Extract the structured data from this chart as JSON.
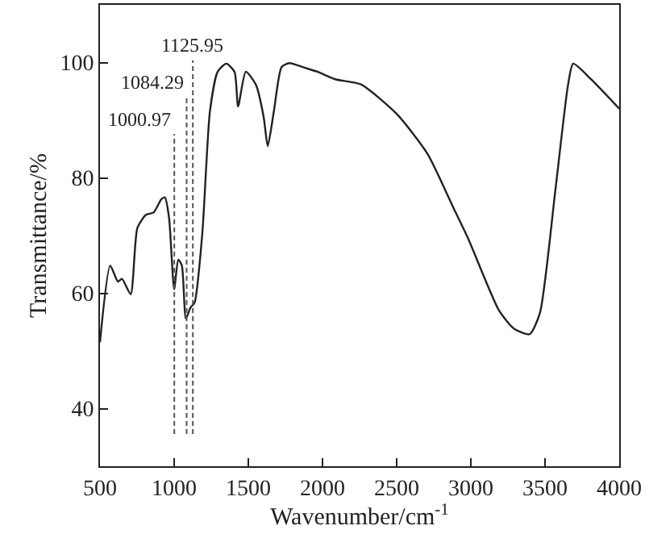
{
  "chart_data": {
    "type": "line",
    "xlabel": "Wavenumber/cm$^{-1}$",
    "ylabel": "Transmittance/%",
    "x": [
      500,
      569,
      621,
      648,
      707,
      752,
      810,
      862,
      914,
      938,
      966,
      1000,
      1028,
      1052,
      1079,
      1110,
      1138,
      1190,
      1241,
      1293,
      1352,
      1407,
      1431,
      1483,
      1552,
      1603,
      1631,
      1672,
      1724,
      1776,
      1879,
      1966,
      2086,
      2259,
      2500,
      2707,
      2879,
      2983,
      3190,
      3293,
      3397,
      3466,
      3569,
      3655,
      3690,
      3810,
      4000
    ],
    "series": [
      {
        "color": "#222222",
        "values": [
          51.5,
          64.8,
          62,
          62.5,
          59.8,
          71.3,
          73.6,
          74,
          76.3,
          76.6,
          73,
          60.7,
          65.8,
          64.8,
          55.6,
          57.5,
          58.4,
          70.4,
          91.5,
          98.4,
          99.8,
          98.4,
          92.4,
          98.4,
          96.1,
          90.6,
          85.5,
          91.5,
          99.2,
          99.9,
          99.1,
          98.4,
          97.1,
          96.2,
          91.1,
          84.2,
          75,
          69.4,
          57,
          53.8,
          52.9,
          56.6,
          77.7,
          96.1,
          99.8,
          97.1,
          92
        ]
      }
    ],
    "xlim": [
      500,
      4000
    ],
    "xticks": [
      500,
      1000,
      1500,
      2000,
      2500,
      3000,
      3500,
      4000
    ],
    "ylim": [
      30,
      110
    ],
    "yticks": [
      40,
      60,
      80,
      100
    ],
    "ref_lines": [
      {
        "axis": "x",
        "value": 1000.97,
        "label": "1000.97",
        "line_style": "dashed"
      },
      {
        "axis": "x",
        "value": 1084.29,
        "label": "1084.29",
        "line_style": "dashed"
      },
      {
        "axis": "x",
        "value": 1125.95,
        "label": "1125.95",
        "line_style": "dashed"
      }
    ],
    "legend": false,
    "marker": "none",
    "line_style": "solid"
  }
}
